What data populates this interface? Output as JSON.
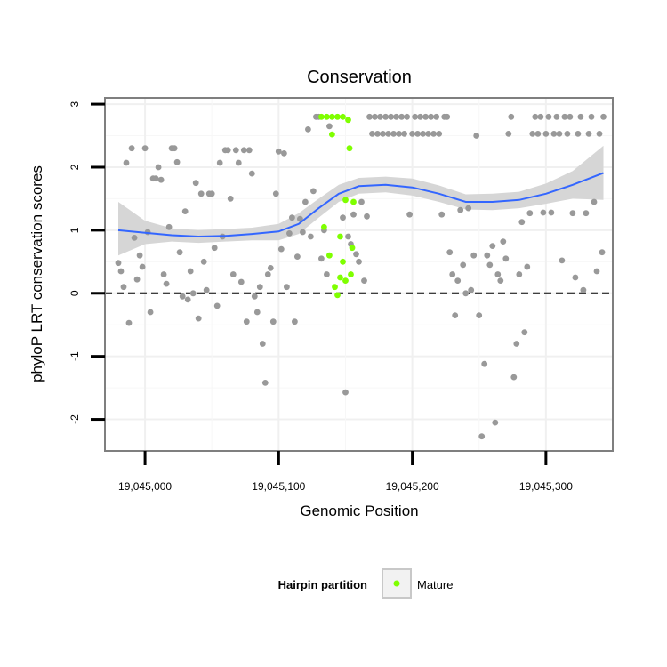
{
  "chart_data": {
    "type": "scatter",
    "title": "Conservation",
    "xlabel": "Genomic Position",
    "ylabel": "phyloP LRT conservation scores",
    "xlim": [
      19044970,
      19045350
    ],
    "ylim": [
      -2.5,
      3.1
    ],
    "x_ticks": [
      {
        "value": 19045000,
        "label": "19,045,000"
      },
      {
        "value": 19045100,
        "label": "19,045,100"
      },
      {
        "value": 19045200,
        "label": "19,045,200"
      },
      {
        "value": 19045300,
        "label": "19,045,300"
      }
    ],
    "y_ticks": [
      {
        "value": 3,
        "label": "3"
      },
      {
        "value": 2,
        "label": "2"
      },
      {
        "value": 1,
        "label": "1"
      },
      {
        "value": 0,
        "label": "0"
      },
      {
        "value": -1,
        "label": "-1"
      },
      {
        "value": -2,
        "label": "-2"
      }
    ],
    "reference_line": {
      "y": 0,
      "style": "dashed"
    },
    "legend": {
      "title": "Hairpin partition",
      "entries": [
        {
          "label": "Mature",
          "color": "#7FFF00"
        }
      ],
      "position": "bottom"
    },
    "colors": {
      "points": "#999999",
      "mature": "#7FFF00",
      "smooth_line": "#3366FF",
      "ribbon": "#D6D6D6",
      "frame": "#7F7F7F"
    },
    "smooth": {
      "x": [
        19044980,
        19045000,
        19045020,
        19045040,
        19045060,
        19045080,
        19045100,
        19045115,
        19045130,
        19045145,
        19045160,
        19045180,
        19045200,
        19045220,
        19045240,
        19045260,
        19045280,
        19045300,
        19045320,
        19045343
      ],
      "y": [
        1.0,
        0.96,
        0.92,
        0.9,
        0.91,
        0.94,
        0.98,
        1.1,
        1.35,
        1.58,
        1.7,
        1.72,
        1.68,
        1.58,
        1.45,
        1.45,
        1.48,
        1.58,
        1.72,
        1.91
      ],
      "lower": [
        0.6,
        0.78,
        0.82,
        0.8,
        0.82,
        0.84,
        0.84,
        0.94,
        1.2,
        1.45,
        1.58,
        1.6,
        1.55,
        1.45,
        1.33,
        1.32,
        1.35,
        1.42,
        1.5,
        1.48
      ],
      "upper": [
        1.45,
        1.15,
        1.03,
        1.0,
        1.02,
        1.04,
        1.1,
        1.27,
        1.5,
        1.72,
        1.83,
        1.85,
        1.82,
        1.71,
        1.57,
        1.58,
        1.61,
        1.74,
        1.94,
        2.34
      ]
    },
    "series": [
      {
        "name": "Other",
        "points": [
          [
            19044980,
            0.48
          ],
          [
            19044982,
            0.35
          ],
          [
            19044984,
            0.1
          ],
          [
            19044986,
            2.07
          ],
          [
            19044988,
            -0.47
          ],
          [
            19044990,
            2.3
          ],
          [
            19044992,
            0.88
          ],
          [
            19044994,
            0.22
          ],
          [
            19044996,
            0.6
          ],
          [
            19044998,
            0.42
          ],
          [
            19045000,
            2.3
          ],
          [
            19045002,
            0.97
          ],
          [
            19045004,
            -0.3
          ],
          [
            19045006,
            1.82
          ],
          [
            19045008,
            1.82
          ],
          [
            19045010,
            2.0
          ],
          [
            19045012,
            1.8
          ],
          [
            19045014,
            0.3
          ],
          [
            19045016,
            0.15
          ],
          [
            19045018,
            1.05
          ],
          [
            19045020,
            2.3
          ],
          [
            19045022,
            2.3
          ],
          [
            19045024,
            2.08
          ],
          [
            19045026,
            0.65
          ],
          [
            19045028,
            -0.05
          ],
          [
            19045030,
            1.3
          ],
          [
            19045032,
            -0.1
          ],
          [
            19045034,
            0.35
          ],
          [
            19045036,
            0.0
          ],
          [
            19045038,
            1.75
          ],
          [
            19045040,
            -0.4
          ],
          [
            19045042,
            1.58
          ],
          [
            19045044,
            0.5
          ],
          [
            19045046,
            0.05
          ],
          [
            19045048,
            1.58
          ],
          [
            19045050,
            1.58
          ],
          [
            19045052,
            0.72
          ],
          [
            19045054,
            -0.2
          ],
          [
            19045056,
            2.07
          ],
          [
            19045058,
            0.9
          ],
          [
            19045060,
            2.27
          ],
          [
            19045062,
            2.27
          ],
          [
            19045064,
            1.5
          ],
          [
            19045066,
            0.3
          ],
          [
            19045068,
            2.27
          ],
          [
            19045070,
            2.07
          ],
          [
            19045072,
            0.18
          ],
          [
            19045074,
            2.27
          ],
          [
            19045076,
            -0.45
          ],
          [
            19045078,
            2.27
          ],
          [
            19045080,
            1.9
          ],
          [
            19045082,
            -0.05
          ],
          [
            19045084,
            -0.3
          ],
          [
            19045086,
            0.1
          ],
          [
            19045088,
            -0.8
          ],
          [
            19045090,
            -1.42
          ],
          [
            19045092,
            0.3
          ],
          [
            19045094,
            0.4
          ],
          [
            19045096,
            -0.45
          ],
          [
            19045098,
            1.58
          ],
          [
            19045100,
            2.25
          ],
          [
            19045102,
            0.7
          ],
          [
            19045104,
            2.22
          ],
          [
            19045106,
            0.1
          ],
          [
            19045108,
            0.95
          ],
          [
            19045110,
            1.2
          ],
          [
            19045112,
            -0.45
          ],
          [
            19045114,
            0.58
          ],
          [
            19045116,
            1.18
          ],
          [
            19045118,
            0.97
          ],
          [
            19045120,
            1.45
          ],
          [
            19045122,
            2.6
          ],
          [
            19045124,
            0.9
          ],
          [
            19045126,
            1.62
          ],
          [
            19045128,
            2.8
          ],
          [
            19045130,
            2.8
          ],
          [
            19045132,
            0.55
          ],
          [
            19045134,
            1.0
          ],
          [
            19045136,
            0.3
          ],
          [
            19045138,
            2.65
          ],
          [
            19045148,
            1.2
          ],
          [
            19045150,
            -1.57
          ],
          [
            19045152,
            0.9
          ],
          [
            19045154,
            0.78
          ],
          [
            19045156,
            1.25
          ],
          [
            19045158,
            0.62
          ],
          [
            19045160,
            0.5
          ],
          [
            19045162,
            1.45
          ],
          [
            19045164,
            0.2
          ],
          [
            19045166,
            1.22
          ],
          [
            19045168,
            2.8
          ],
          [
            19045170,
            2.53
          ],
          [
            19045172,
            2.8
          ],
          [
            19045174,
            2.53
          ],
          [
            19045176,
            2.8
          ],
          [
            19045178,
            2.53
          ],
          [
            19045180,
            2.8
          ],
          [
            19045182,
            2.53
          ],
          [
            19045184,
            2.8
          ],
          [
            19045186,
            2.53
          ],
          [
            19045188,
            2.8
          ],
          [
            19045190,
            2.53
          ],
          [
            19045192,
            2.8
          ],
          [
            19045194,
            2.53
          ],
          [
            19045196,
            2.8
          ],
          [
            19045198,
            1.25
          ],
          [
            19045200,
            2.53
          ],
          [
            19045202,
            2.8
          ],
          [
            19045204,
            2.53
          ],
          [
            19045206,
            2.8
          ],
          [
            19045208,
            2.53
          ],
          [
            19045210,
            2.8
          ],
          [
            19045212,
            2.53
          ],
          [
            19045214,
            2.8
          ],
          [
            19045216,
            2.53
          ],
          [
            19045218,
            2.8
          ],
          [
            19045220,
            2.53
          ],
          [
            19045222,
            1.25
          ],
          [
            19045224,
            2.8
          ],
          [
            19045226,
            2.8
          ],
          [
            19045228,
            0.65
          ],
          [
            19045230,
            0.3
          ],
          [
            19045232,
            -0.35
          ],
          [
            19045234,
            0.2
          ],
          [
            19045236,
            1.32
          ],
          [
            19045238,
            0.45
          ],
          [
            19045240,
            0.0
          ],
          [
            19045242,
            1.35
          ],
          [
            19045244,
            0.05
          ],
          [
            19045246,
            0.6
          ],
          [
            19045248,
            2.5
          ],
          [
            19045250,
            -0.35
          ],
          [
            19045252,
            -2.27
          ],
          [
            19045254,
            -1.12
          ],
          [
            19045256,
            0.6
          ],
          [
            19045258,
            0.45
          ],
          [
            19045260,
            0.75
          ],
          [
            19045262,
            -2.05
          ],
          [
            19045264,
            0.3
          ],
          [
            19045266,
            0.2
          ],
          [
            19045268,
            0.82
          ],
          [
            19045270,
            0.55
          ],
          [
            19045272,
            2.53
          ],
          [
            19045274,
            2.8
          ],
          [
            19045276,
            -1.33
          ],
          [
            19045278,
            -0.8
          ],
          [
            19045280,
            0.3
          ],
          [
            19045282,
            1.13
          ],
          [
            19045284,
            -0.62
          ],
          [
            19045286,
            0.42
          ],
          [
            19045288,
            1.27
          ],
          [
            19045290,
            2.53
          ],
          [
            19045292,
            2.8
          ],
          [
            19045294,
            2.53
          ],
          [
            19045296,
            2.8
          ],
          [
            19045298,
            1.28
          ],
          [
            19045300,
            2.53
          ],
          [
            19045302,
            2.8
          ],
          [
            19045304,
            1.28
          ],
          [
            19045306,
            2.53
          ],
          [
            19045308,
            2.8
          ],
          [
            19045310,
            2.53
          ],
          [
            19045312,
            0.52
          ],
          [
            19045314,
            2.8
          ],
          [
            19045316,
            2.53
          ],
          [
            19045318,
            2.8
          ],
          [
            19045320,
            1.27
          ],
          [
            19045322,
            0.25
          ],
          [
            19045324,
            2.53
          ],
          [
            19045326,
            2.8
          ],
          [
            19045328,
            0.05
          ],
          [
            19045330,
            1.27
          ],
          [
            19045332,
            2.53
          ],
          [
            19045334,
            2.8
          ],
          [
            19045336,
            1.45
          ],
          [
            19045338,
            0.35
          ],
          [
            19045340,
            2.53
          ],
          [
            19045342,
            0.65
          ],
          [
            19045343,
            2.8
          ]
        ]
      },
      {
        "name": "Mature",
        "points": [
          [
            19045132,
            2.8
          ],
          [
            19045134,
            1.05
          ],
          [
            19045136,
            2.8
          ],
          [
            19045138,
            0.6
          ],
          [
            19045140,
            2.52
          ],
          [
            19045142,
            0.1
          ],
          [
            19045144,
            -0.03
          ],
          [
            19045146,
            0.9
          ],
          [
            19045148,
            0.5
          ],
          [
            19045150,
            0.2
          ],
          [
            19045152,
            2.75
          ],
          [
            19045153,
            2.3
          ],
          [
            19045154,
            0.3
          ],
          [
            19045155,
            0.72
          ],
          [
            19045156,
            1.45
          ],
          [
            19045140,
            2.8
          ],
          [
            19045144,
            2.8
          ],
          [
            19045148,
            2.8
          ],
          [
            19045150,
            1.48
          ],
          [
            19045146,
            0.25
          ]
        ]
      }
    ]
  }
}
